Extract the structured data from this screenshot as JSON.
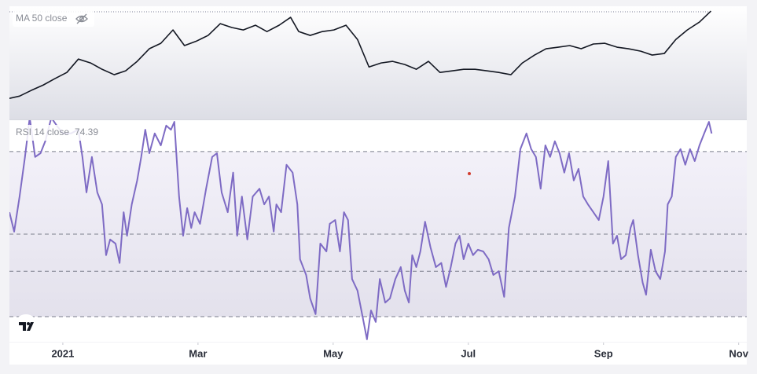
{
  "chart_data": [
    {
      "type": "line",
      "x": [
        -0.79,
        -0.64,
        -0.47,
        -0.29,
        -0.12,
        0.06,
        0.23,
        0.41,
        0.58,
        0.76,
        0.93,
        1.1,
        1.28,
        1.45,
        1.63,
        1.8,
        1.98,
        2.15,
        2.33,
        2.5,
        2.67,
        2.85,
        3.02,
        3.2,
        3.37,
        3.49,
        3.66,
        3.84,
        4.01,
        4.19,
        4.36,
        4.53,
        4.71,
        4.88,
        5.06,
        5.23,
        5.41,
        5.58,
        5.76,
        5.93,
        6.1,
        6.28,
        6.45,
        6.63,
        6.8,
        6.98,
        7.15,
        7.33,
        7.5,
        7.67,
        7.85,
        8.02,
        8.2,
        8.37,
        8.55,
        8.72,
        8.9,
        9.07,
        9.24,
        9.42,
        9.59
      ],
      "series": [
        {
          "name": "MA 50 close",
          "color": "#131722",
          "values": [
            18.0,
            19.3,
            22.5,
            25.6,
            29.2,
            32.8,
            40.4,
            38.2,
            34.6,
            31.5,
            33.7,
            39.1,
            46.3,
            49.4,
            57.0,
            48.1,
            50.7,
            53.9,
            60.6,
            58.4,
            57.0,
            59.7,
            56.1,
            59.7,
            64.2,
            56.1,
            53.9,
            56.1,
            57.0,
            59.7,
            51.6,
            35.9,
            38.2,
            39.1,
            37.3,
            34.6,
            39.1,
            32.8,
            33.7,
            34.6,
            34.6,
            33.7,
            32.8,
            31.5,
            38.2,
            42.7,
            46.3,
            47.2,
            48.1,
            46.3,
            49.0,
            49.4,
            47.2,
            46.3,
            44.9,
            42.7,
            43.6,
            51.6,
            57.0,
            61.5,
            67.8
          ]
        }
      ],
      "xlim": [
        -0.79,
        10.12
      ],
      "ylim": [
        6,
        70.5
      ]
    },
    {
      "type": "line",
      "x": [
        -0.79,
        -0.72,
        -0.64,
        -0.56,
        -0.49,
        -0.41,
        -0.33,
        -0.26,
        -0.17,
        -0.09,
        0,
        0.12,
        0.23,
        0.29,
        0.35,
        0.43,
        0.51,
        0.58,
        0.64,
        0.7,
        0.78,
        0.84,
        0.9,
        0.95,
        1.02,
        1.1,
        1.16,
        1.22,
        1.28,
        1.36,
        1.45,
        1.53,
        1.6,
        1.65,
        1.72,
        1.78,
        1.84,
        1.9,
        1.95,
        2.03,
        2.12,
        2.21,
        2.28,
        2.35,
        2.44,
        2.52,
        2.58,
        2.65,
        2.73,
        2.81,
        2.91,
        2.98,
        3.05,
        3.12,
        3.16,
        3.23,
        3.31,
        3.4,
        3.47,
        3.51,
        3.6,
        3.66,
        3.74,
        3.81,
        3.9,
        3.95,
        4.03,
        4.1,
        4.16,
        4.22,
        4.28,
        4.36,
        4.44,
        4.5,
        4.56,
        4.63,
        4.69,
        4.77,
        4.84,
        4.92,
        5.0,
        5.06,
        5.12,
        5.17,
        5.23,
        5.29,
        5.36,
        5.44,
        5.52,
        5.6,
        5.67,
        5.74,
        5.81,
        5.87,
        5.93,
        6.0,
        6.07,
        6.14,
        6.22,
        6.3,
        6.37,
        6.45,
        6.53,
        6.6,
        6.69,
        6.77,
        6.86,
        6.93,
        7.0,
        7.07,
        7.14,
        7.21,
        7.28,
        7.35,
        7.42,
        7.49,
        7.56,
        7.63,
        7.7,
        7.77,
        7.85,
        7.93,
        8.0,
        8.07,
        8.14,
        8.2,
        8.26,
        8.33,
        8.4,
        8.44,
        8.51,
        8.58,
        8.63,
        8.7,
        8.77,
        8.84,
        8.91,
        8.95,
        9.01,
        9.07,
        9.14,
        9.21,
        9.28,
        9.35,
        9.42,
        9.49,
        9.56,
        9.6
      ],
      "series": [
        {
          "name": "RSI 14 close",
          "color": "#7e6bc4",
          "values": [
            55.3,
            50.6,
            59.1,
            68.7,
            78.2,
            68.7,
            69.6,
            72.5,
            78.2,
            76.3,
            74.4,
            74.4,
            75.3,
            68.7,
            60.1,
            68.7,
            60.1,
            57.2,
            44.9,
            48.7,
            47.7,
            43.0,
            55.3,
            49.6,
            57.2,
            63.0,
            68.7,
            75.3,
            69.6,
            74.4,
            71.5,
            76.3,
            75.3,
            77.2,
            59.1,
            49.6,
            56.3,
            51.5,
            55.3,
            52.5,
            61.0,
            68.7,
            69.6,
            60.1,
            55.3,
            64.9,
            49.6,
            59.1,
            48.7,
            59.1,
            61.0,
            57.2,
            59.1,
            50.6,
            57.2,
            55.3,
            66.8,
            64.9,
            57.2,
            43.9,
            40.1,
            34.4,
            30.6,
            47.7,
            45.8,
            52.5,
            53.4,
            45.8,
            55.3,
            53.4,
            39.1,
            36.3,
            29.6,
            24.5,
            31.5,
            28.7,
            39.1,
            33.4,
            34.4,
            39.1,
            42.0,
            36.3,
            33.4,
            44.9,
            42.0,
            45.8,
            53.0,
            46.8,
            42.0,
            43.0,
            37.2,
            42.0,
            47.7,
            49.6,
            43.9,
            47.7,
            44.9,
            46.2,
            45.8,
            43.9,
            40.1,
            41.0,
            34.8,
            51.5,
            59.1,
            70.6,
            74.4,
            70.6,
            68.7,
            61.0,
            71.5,
            68.7,
            72.5,
            69.6,
            64.9,
            69.6,
            63.0,
            65.8,
            59.1,
            57.2,
            55.3,
            53.4,
            59.1,
            67.7,
            47.7,
            49.6,
            43.9,
            44.9,
            51.5,
            53.4,
            44.9,
            38.2,
            35.3,
            46.2,
            41.0,
            39.1,
            45.8,
            57.2,
            59.1,
            68.7,
            70.6,
            66.8,
            70.6,
            67.7,
            71.5,
            74.4,
            77.2,
            74.39
          ]
        }
      ],
      "levels": [
        70,
        50,
        41,
        30
      ],
      "xlim": [
        -0.79,
        10.12
      ],
      "ylim": [
        23.9,
        77.6
      ],
      "xticks": [
        {
          "value": 0,
          "label": "2021"
        },
        {
          "value": 2,
          "label": "Mar"
        },
        {
          "value": 4,
          "label": "May"
        },
        {
          "value": 6,
          "label": "Jul"
        },
        {
          "value": 8,
          "label": "Sep"
        },
        {
          "value": 10,
          "label": "Nov"
        }
      ]
    }
  ]
}
